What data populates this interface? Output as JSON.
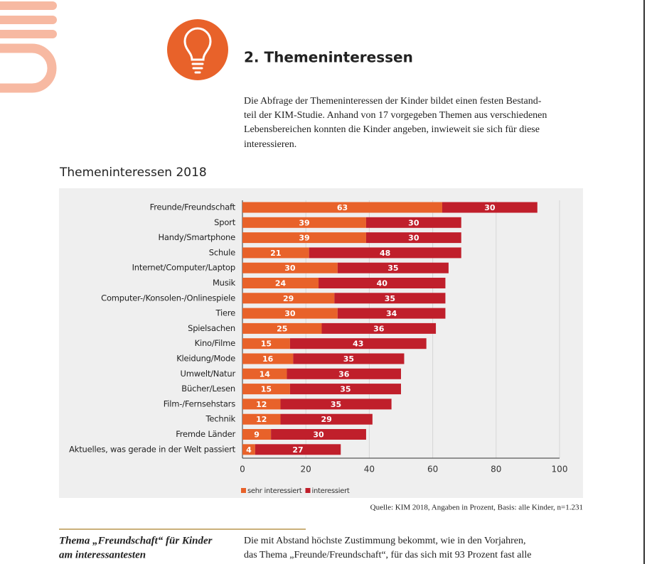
{
  "header": {
    "title": "2. Themeninteressen"
  },
  "intro": {
    "lines": [
      "Die Abfrage der Themeninteressen der Kinder bildet einen festen Bestand-",
      "teil der KIM-Studie. Anhand von 17 vorgegeben Themen aus verschiedenen",
      "Lebensbereichen konnten die Kinder angeben, inwieweit sie sich für diese",
      "interessieren."
    ]
  },
  "chart_data": {
    "type": "bar",
    "stacked": true,
    "title": "Themeninteressen 2018",
    "categories": [
      "Freunde/Freundschaft",
      "Sport",
      "Handy/Smartphone",
      "Schule",
      "Internet/Computer/Laptop",
      "Musik",
      "Computer-/Konsolen-/Onlinespiele",
      "Tiere",
      "Spielsachen",
      "Kino/Filme",
      "Kleidung/Mode",
      "Umwelt/Natur",
      "Bücher/Lesen",
      "Film-/Fernsehstars",
      "Technik",
      "Fremde Länder",
      "Aktuelles, was gerade in der Welt passiert"
    ],
    "series": [
      {
        "name": "sehr interessiert",
        "color": "#e8622a",
        "values": [
          63,
          39,
          39,
          21,
          30,
          24,
          29,
          30,
          25,
          15,
          16,
          14,
          15,
          12,
          12,
          9,
          4
        ]
      },
      {
        "name": "interessiert",
        "color": "#c01f2b",
        "values": [
          30,
          30,
          30,
          48,
          35,
          40,
          35,
          34,
          36,
          43,
          35,
          36,
          35,
          35,
          29,
          30,
          27
        ]
      }
    ],
    "xlim": [
      0,
      100
    ],
    "xticks": [
      0,
      20,
      40,
      60,
      80,
      100
    ],
    "grid": true,
    "legend": "bottom",
    "source": "Quelle: KIM 2018, Angaben in Prozent, Basis: alle Kinder, n=1.231"
  },
  "sidebar": {
    "lines": [
      "Thema „Freundschaft“ für Kinder",
      "am interessantesten"
    ]
  },
  "body": {
    "lines": [
      "Die mit Abstand höchste Zustimmung bekommt, wie in den Vorjahren,",
      "das Thema „Freunde/Freundschaft“, für das sich mit 93 Prozent fast alle"
    ]
  }
}
